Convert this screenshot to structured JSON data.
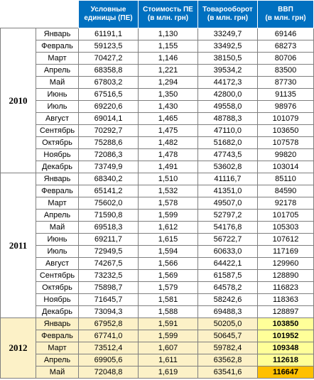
{
  "header": {
    "pe": [
      "Условные",
      "единицы (ПЕ)"
    ],
    "cost": [
      "Стоимость ПЕ",
      "(в млн. грн)"
    ],
    "turnover": [
      "Товарооборот",
      "(в млн. грн)"
    ],
    "gdp": [
      "ВВП",
      "(в млн. грн)"
    ]
  },
  "years": [
    {
      "year": "2010",
      "rows": [
        {
          "month": "Январь",
          "pe": "61191,1",
          "cost": "1,130",
          "turnover": "33249,7",
          "gdp": "69146"
        },
        {
          "month": "Февраль",
          "pe": "59123,5",
          "cost": "1,155",
          "turnover": "33492,5",
          "gdp": "68273"
        },
        {
          "month": "Март",
          "pe": "70427,2",
          "cost": "1,146",
          "turnover": "38150,5",
          "gdp": "80706"
        },
        {
          "month": "Апрель",
          "pe": "68358,8",
          "cost": "1,221",
          "turnover": "39534,2",
          "gdp": "83500"
        },
        {
          "month": "Май",
          "pe": "67803,2",
          "cost": "1,294",
          "turnover": "44172,3",
          "gdp": "87730"
        },
        {
          "month": "Июнь",
          "pe": "67516,5",
          "cost": "1,350",
          "turnover": "42800,0",
          "gdp": "91135"
        },
        {
          "month": "Июль",
          "pe": "69220,6",
          "cost": "1,430",
          "turnover": "49558,0",
          "gdp": "98976"
        },
        {
          "month": "Август",
          "pe": "69014,1",
          "cost": "1,465",
          "turnover": "48788,3",
          "gdp": "101079"
        },
        {
          "month": "Сентябрь",
          "pe": "70292,7",
          "cost": "1,475",
          "turnover": "47110,0",
          "gdp": "103650"
        },
        {
          "month": "Октябрь",
          "pe": "75288,6",
          "cost": "1,482",
          "turnover": "51682,0",
          "gdp": "107578"
        },
        {
          "month": "Ноябрь",
          "pe": "72086,3",
          "cost": "1,478",
          "turnover": "47743,5",
          "gdp": "99820"
        },
        {
          "month": "Декабрь",
          "pe": "73749,9",
          "cost": "1,491",
          "turnover": "53602,8",
          "gdp": "103014"
        }
      ]
    },
    {
      "year": "2011",
      "rows": [
        {
          "month": "Январь",
          "pe": "68340,2",
          "cost": "1,510",
          "turnover": "41116,7",
          "gdp": "85110"
        },
        {
          "month": "Февраль",
          "pe": "65141,2",
          "cost": "1,532",
          "turnover": "41351,0",
          "gdp": "84590"
        },
        {
          "month": "Март",
          "pe": "75602,0",
          "cost": "1,578",
          "turnover": "49507,0",
          "gdp": "92178"
        },
        {
          "month": "Апрель",
          "pe": "71590,8",
          "cost": "1,599",
          "turnover": "52797,2",
          "gdp": "101705"
        },
        {
          "month": "Май",
          "pe": "69518,3",
          "cost": "1,612",
          "turnover": "54176,8",
          "gdp": "105303"
        },
        {
          "month": "Июнь",
          "pe": "69211,7",
          "cost": "1,615",
          "turnover": "56722,7",
          "gdp": "107612"
        },
        {
          "month": "Июль",
          "pe": "72949,5",
          "cost": "1,594",
          "turnover": "60633,0",
          "gdp": "117169"
        },
        {
          "month": "Август",
          "pe": "74267,5",
          "cost": "1,566",
          "turnover": "64422,1",
          "gdp": "129960"
        },
        {
          "month": "Сентябрь",
          "pe": "73232,5",
          "cost": "1,569",
          "turnover": "61587,5",
          "gdp": "128890"
        },
        {
          "month": "Октябрь",
          "pe": "75898,7",
          "cost": "1,579",
          "turnover": "64578,2",
          "gdp": "116823"
        },
        {
          "month": "Ноябрь",
          "pe": "71645,7",
          "cost": "1,581",
          "turnover": "58242,6",
          "gdp": "118363"
        },
        {
          "month": "Декабрь",
          "pe": "73094,3",
          "cost": "1,588",
          "turnover": "69488,3",
          "gdp": "128897"
        }
      ]
    },
    {
      "year": "2012",
      "rows": [
        {
          "month": "Январь",
          "pe": "67952,8",
          "cost": "1,591",
          "turnover": "50205,0",
          "gdp": "103850",
          "gdp_highlight": "yellow"
        },
        {
          "month": "Февраль",
          "pe": "67741,0",
          "cost": "1,599",
          "turnover": "50645,7",
          "gdp": "101952",
          "gdp_highlight": "yellow"
        },
        {
          "month": "Март",
          "pe": "73512,4",
          "cost": "1,607",
          "turnover": "59782,4",
          "gdp": "109348",
          "gdp_highlight": "yellow"
        },
        {
          "month": "Апрель",
          "pe": "69905,6",
          "cost": "1,611",
          "turnover": "63562,8",
          "gdp": "112618",
          "gdp_highlight": "yellow"
        },
        {
          "month": "Май",
          "pe": "72048,8",
          "cost": "1,619",
          "turnover": "63541,6",
          "gdp": "116647",
          "gdp_highlight": "orange"
        }
      ]
    }
  ],
  "colors": {
    "header_bg": "#0070c0",
    "row_2012_bg": "#fcf1c7",
    "gdp_yellow": "#ffff99",
    "gdp_orange": "#ffc000"
  }
}
